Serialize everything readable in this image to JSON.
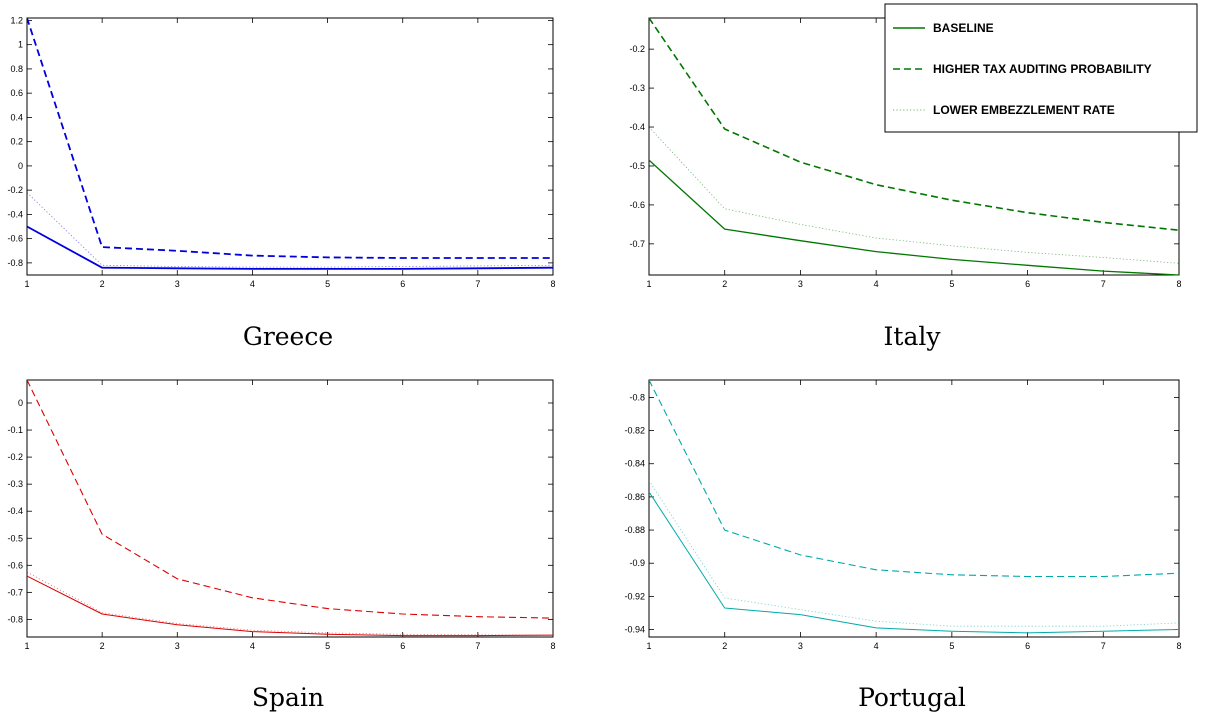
{
  "legend": {
    "entries": [
      {
        "label": "BASELINE",
        "style": "solid"
      },
      {
        "label": "HIGHER TAX AUDITING PROBABILITY",
        "style": "dashed"
      },
      {
        "label": "LOWER EMBEZZLEMENT RATE",
        "style": "dotted"
      }
    ]
  },
  "chart_data": [
    {
      "type": "line",
      "caption": "Greece",
      "color": "#0000dd",
      "x": [
        1,
        2,
        3,
        4,
        5,
        6,
        7,
        8
      ],
      "xticks": [
        "1",
        "2",
        "3",
        "4",
        "5",
        "6",
        "7",
        "8"
      ],
      "ylim": [
        -0.9,
        1.22
      ],
      "yticks": [
        "1.2",
        "1",
        "0.8",
        "0.6",
        "0.4",
        "0.2",
        "0",
        "-0.2",
        "-0.4",
        "-0.6",
        "-0.8"
      ],
      "ytick_values": [
        1.2,
        1.0,
        0.8,
        0.6,
        0.4,
        0.2,
        0.0,
        -0.2,
        -0.4,
        -0.6,
        -0.8
      ],
      "series": [
        {
          "values": [
            -0.5,
            -0.84,
            -0.845,
            -0.85,
            -0.85,
            -0.85,
            -0.845,
            -0.84
          ]
        },
        {
          "values": [
            1.22,
            -0.67,
            -0.7,
            -0.74,
            -0.755,
            -0.76,
            -0.76,
            -0.76
          ]
        },
        {
          "values": [
            -0.22,
            -0.82,
            -0.83,
            -0.835,
            -0.835,
            -0.83,
            -0.825,
            -0.82
          ]
        }
      ]
    },
    {
      "type": "line",
      "caption": "Italy",
      "color": "#007700",
      "x": [
        1,
        2,
        3,
        4,
        5,
        6,
        7,
        8
      ],
      "xticks": [
        "1",
        "2",
        "3",
        "4",
        "5",
        "6",
        "7",
        "8"
      ],
      "ylim": [
        -0.78,
        -0.12
      ],
      "yticks": [
        "-0.2",
        "-0.3",
        "-0.4",
        "-0.5",
        "-0.6",
        "-0.7"
      ],
      "ytick_values": [
        -0.2,
        -0.3,
        -0.4,
        -0.5,
        -0.6,
        -0.7
      ],
      "series": [
        {
          "values": [
            -0.485,
            -0.662,
            -0.692,
            -0.72,
            -0.74,
            -0.755,
            -0.77,
            -0.78
          ]
        },
        {
          "values": [
            -0.12,
            -0.405,
            -0.49,
            -0.548,
            -0.588,
            -0.62,
            -0.645,
            -0.665
          ]
        },
        {
          "values": [
            -0.4,
            -0.61,
            -0.65,
            -0.685,
            -0.705,
            -0.722,
            -0.735,
            -0.75
          ]
        }
      ]
    },
    {
      "type": "line",
      "caption": "Spain",
      "color": "#dd0000",
      "x": [
        1,
        2,
        3,
        4,
        5,
        6,
        7,
        8
      ],
      "xticks": [
        "1",
        "2",
        "3",
        "4",
        "5",
        "6",
        "7",
        "8"
      ],
      "ylim": [
        -0.865,
        0.085
      ],
      "yticks": [
        "0",
        "-0.1",
        "-0.2",
        "-0.3",
        "-0.4",
        "-0.5",
        "-0.6",
        "-0.7",
        "-0.8"
      ],
      "ytick_values": [
        0.0,
        -0.1,
        -0.2,
        -0.3,
        -0.4,
        -0.5,
        -0.6,
        -0.7,
        -0.8
      ],
      "series": [
        {
          "values": [
            -0.64,
            -0.78,
            -0.82,
            -0.845,
            -0.855,
            -0.86,
            -0.86,
            -0.858
          ]
        },
        {
          "values": [
            0.085,
            -0.485,
            -0.65,
            -0.72,
            -0.76,
            -0.78,
            -0.79,
            -0.795
          ]
        },
        {
          "values": [
            -0.625,
            -0.775,
            -0.815,
            -0.84,
            -0.85,
            -0.855,
            -0.857,
            -0.858
          ]
        }
      ]
    },
    {
      "type": "line",
      "caption": "Portugal",
      "color": "#00aaaa",
      "x": [
        1,
        2,
        3,
        4,
        5,
        6,
        7,
        8
      ],
      "xticks": [
        "1",
        "2",
        "3",
        "4",
        "5",
        "6",
        "7",
        "8"
      ],
      "ylim": [
        -0.9445,
        -0.7895
      ],
      "yticks": [
        "-0.8",
        "-0.82",
        "-0.84",
        "-0.86",
        "-0.88",
        "-0.9",
        "-0.92",
        "-0.94"
      ],
      "ytick_values": [
        -0.8,
        -0.82,
        -0.84,
        -0.86,
        -0.88,
        -0.9,
        -0.92,
        -0.94
      ],
      "series": [
        {
          "values": [
            -0.857,
            -0.927,
            -0.931,
            -0.939,
            -0.941,
            -0.942,
            -0.941,
            -0.94
          ]
        },
        {
          "values": [
            -0.7895,
            -0.88,
            -0.895,
            -0.904,
            -0.907,
            -0.908,
            -0.908,
            -0.906
          ]
        },
        {
          "values": [
            -0.85,
            -0.921,
            -0.928,
            -0.935,
            -0.938,
            -0.938,
            -0.938,
            -0.936
          ]
        }
      ]
    }
  ]
}
